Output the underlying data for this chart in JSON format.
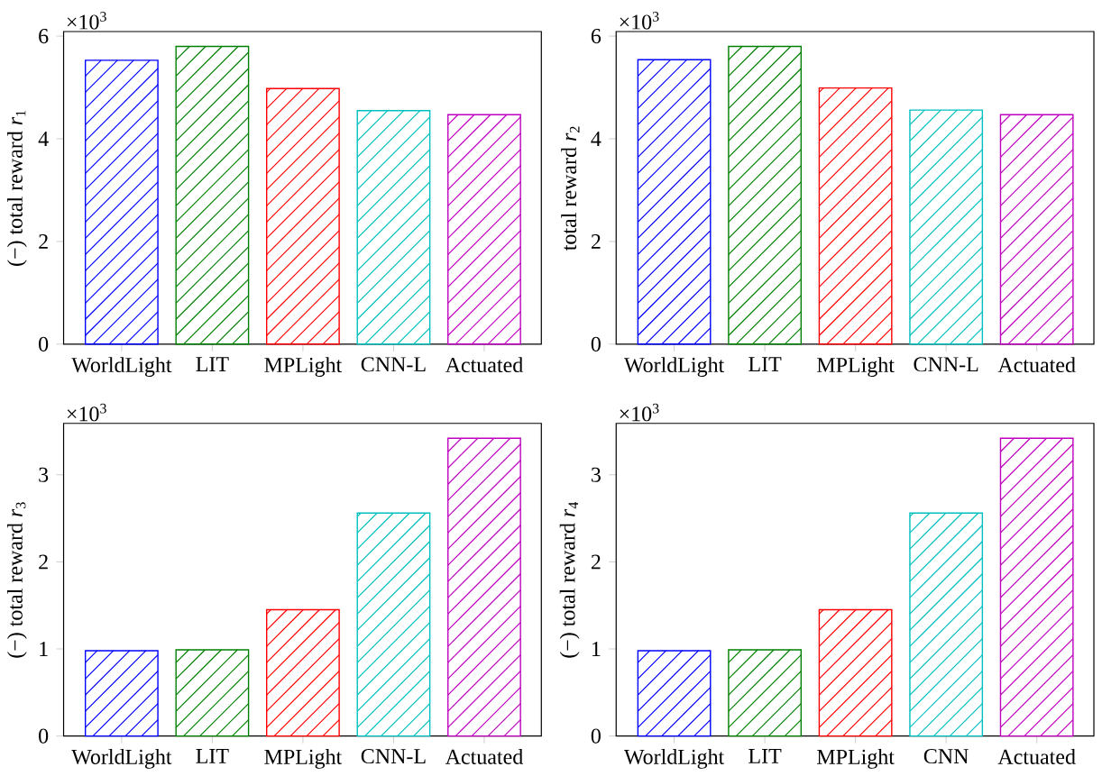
{
  "chart_data": [
    {
      "type": "bar",
      "ylabel": "(−) total reward *r*$_{1}$",
      "categories": [
        "WorldLight",
        "LIT",
        "MPLight",
        "CNN-L",
        "Actuated"
      ],
      "values": [
        5.53,
        5.8,
        4.98,
        4.55,
        4.47
      ],
      "colors": [
        "#0000ff",
        "#008000",
        "#ff0000",
        "#00bfbf",
        "#bf00bf"
      ],
      "ylim": [
        0,
        6.09
      ],
      "yticks": [
        0,
        2,
        4,
        6
      ],
      "annotations": [
        "×10$^{3}$"
      ]
    },
    {
      "type": "bar",
      "ylabel": "total reward *r*$_{2}$",
      "categories": [
        "WorldLight",
        "LIT",
        "MPLight",
        "CNN-L",
        "Actuated"
      ],
      "values": [
        5.54,
        5.8,
        4.99,
        4.56,
        4.47
      ],
      "colors": [
        "#0000ff",
        "#008000",
        "#ff0000",
        "#00bfbf",
        "#bf00bf"
      ],
      "ylim": [
        0,
        6.09
      ],
      "yticks": [
        0,
        2,
        4,
        6
      ],
      "annotations": [
        "×10$^{3}$"
      ]
    },
    {
      "type": "bar",
      "ylabel": "(−) total reward *r*$_{3}$",
      "categories": [
        "WorldLight",
        "LIT",
        "MPLight",
        "CNN-L",
        "Actuated"
      ],
      "values": [
        0.98,
        0.99,
        1.45,
        2.56,
        3.42
      ],
      "colors": [
        "#0000ff",
        "#008000",
        "#ff0000",
        "#00bfbf",
        "#bf00bf"
      ],
      "ylim": [
        0,
        3.59
      ],
      "yticks": [
        0,
        1,
        2,
        3
      ],
      "annotations": [
        "×10$^{3}$"
      ]
    },
    {
      "type": "bar",
      "ylabel": "(−) total reward *r*$_{4}$",
      "categories": [
        "WorldLight",
        "LIT",
        "MPLight",
        "CNN",
        "Actuated"
      ],
      "values": [
        0.98,
        0.99,
        1.45,
        2.56,
        3.42
      ],
      "colors": [
        "#0000ff",
        "#008000",
        "#ff0000",
        "#00bfbf",
        "#bf00bf"
      ],
      "ylim": [
        0,
        3.59
      ],
      "yticks": [
        0,
        1,
        2,
        3
      ],
      "annotations": [
        "×10$^{3}$"
      ]
    }
  ]
}
